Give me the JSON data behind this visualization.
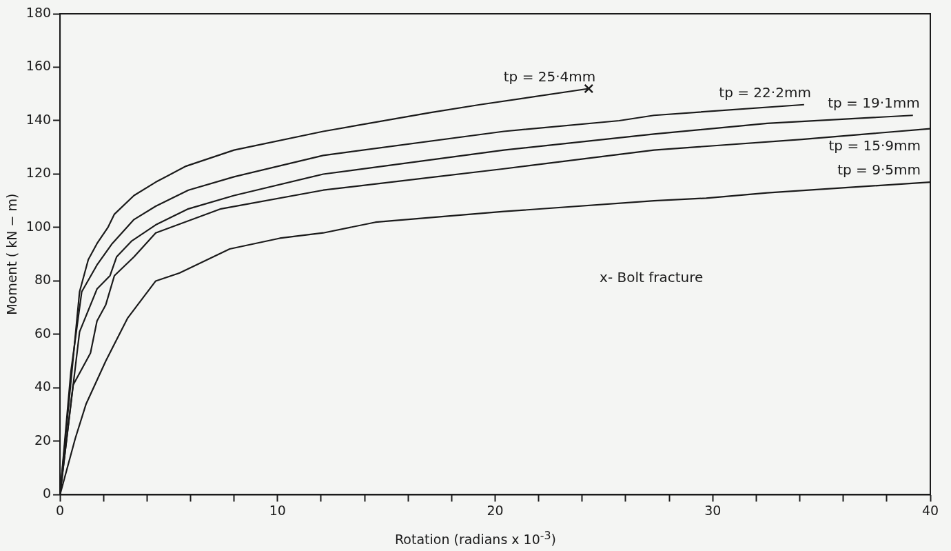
{
  "chart_data": {
    "type": "line",
    "xlabel": "Rotation  (radians x 10$^{-3}$)",
    "ylabel": "Moment ( kN − m)",
    "xlim": [
      0,
      40
    ],
    "ylim": [
      0,
      180
    ],
    "xticks": [
      0,
      {
        "value": 2,
        "label": null
      },
      {
        "value": 4,
        "label": null
      },
      {
        "value": 6,
        "label": null
      },
      {
        "value": 8,
        "label": null
      },
      10,
      {
        "value": 12,
        "label": null
      },
      {
        "value": 14,
        "label": null
      },
      {
        "value": 16,
        "label": null
      },
      {
        "value": 18,
        "label": null
      },
      20,
      {
        "value": 22,
        "label": null
      },
      {
        "value": 24,
        "label": null
      },
      {
        "value": 26,
        "label": null
      },
      {
        "value": 28,
        "label": null
      },
      30,
      {
        "value": 32,
        "label": null
      },
      {
        "value": 34,
        "label": null
      },
      {
        "value": 36,
        "label": null
      },
      {
        "value": 38,
        "label": null
      },
      40
    ],
    "yticks": [
      0,
      20,
      40,
      60,
      80,
      100,
      120,
      140,
      160,
      180
    ],
    "grid": false,
    "legend": false,
    "marker": "none",
    "line_style": "solid",
    "annotations": [
      "x- Bolt fracture"
    ],
    "series": [
      {
        "name": "tp = 25·4mm",
        "color": "#1a1a1a",
        "x": [
          0,
          0.9,
          1.3,
          1.7,
          2.2,
          2.5,
          3.4,
          4.4,
          5.8,
          8,
          12.1,
          17,
          19.3,
          24.3
        ],
        "values": [
          0,
          76,
          88,
          94,
          100,
          105,
          112,
          117,
          123,
          129,
          136,
          143,
          146,
          152
        ]
      },
      {
        "name": "tp = 22·2mm",
        "color": "#1a1a1a",
        "x": [
          0,
          0.5,
          1,
          1.7,
          2.4,
          3.4,
          4.4,
          5.9,
          8,
          12.1,
          20.4,
          25.7,
          27.3,
          34.2
        ],
        "values": [
          0,
          46,
          76,
          86,
          94,
          103,
          108,
          114,
          119,
          127,
          136,
          140,
          142,
          146
        ]
      },
      {
        "name": "tp = 19·1mm",
        "color": "#1a1a1a",
        "x": [
          0,
          0.9,
          1.7,
          2.3,
          2.6,
          3.3,
          4.4,
          5.9,
          8,
          12.1,
          20.4,
          27.3,
          32.5,
          39.2
        ],
        "values": [
          0,
          61,
          77,
          82,
          89,
          95,
          101,
          107,
          112,
          120,
          129,
          135,
          139,
          142
        ]
      },
      {
        "name": "tp = 15·9mm",
        "color": "#1a1a1a",
        "x": [
          0,
          0.6,
          1.4,
          1.7,
          2.1,
          2.5,
          3.4,
          4.4,
          7.4,
          12.1,
          20.4,
          27.3,
          34.1,
          40
        ],
        "values": [
          0,
          41,
          53,
          65,
          71,
          82,
          89,
          98,
          107,
          114,
          122,
          129,
          133,
          137
        ]
      },
      {
        "name": "tp = 9·5mm",
        "color": "#1a1a1a",
        "x": [
          0,
          0.7,
          1.2,
          2.1,
          3.1,
          4.4,
          5.5,
          7.8,
          10.1,
          12.1,
          14.5,
          20.4,
          27.3,
          29.7,
          32.5,
          40
        ],
        "values": [
          0,
          21,
          34,
          50,
          66,
          80,
          83,
          92,
          96,
          98,
          102,
          106,
          110,
          111,
          113,
          117
        ]
      },
      {
        "type": "scatter",
        "marker": "cross",
        "color": "#1a1a1a",
        "x": [
          24.3
        ],
        "values": [
          152
        ]
      }
    ]
  }
}
